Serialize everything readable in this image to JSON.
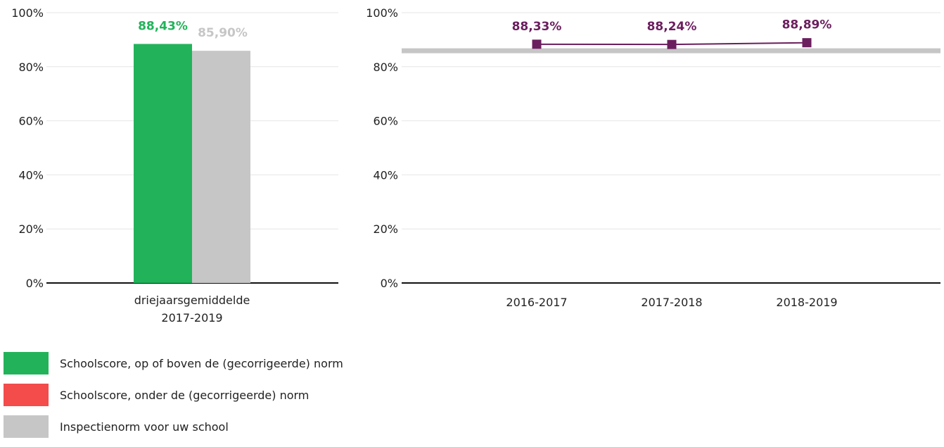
{
  "chart_data": [
    {
      "type": "bar",
      "categories": [
        "driejaarsgemiddelde 2017-2019"
      ],
      "category_lines": [
        "driejaarsgemiddelde",
        "2017-2019"
      ],
      "series": [
        {
          "name": "Schoolscore, op of boven de (gecorrigeerde) norm",
          "values": [
            88.43
          ],
          "labels": [
            "88,43%"
          ],
          "color": "#22b35a"
        },
        {
          "name": "Inspectienorm voor uw school",
          "values": [
            85.9
          ],
          "labels": [
            "85,90%"
          ],
          "color": "#c6c6c6"
        }
      ],
      "ylim": [
        0,
        100
      ],
      "yticks": [
        0,
        20,
        40,
        60,
        80,
        100
      ],
      "ytick_labels": [
        "0%",
        "20%",
        "40%",
        "60%",
        "80%",
        "100%"
      ],
      "grid": true
    },
    {
      "type": "line",
      "categories": [
        "2016-2017",
        "2017-2018",
        "2018-2019"
      ],
      "series": [
        {
          "values": [
            88.33,
            88.24,
            88.89
          ],
          "labels": [
            "88,33%",
            "88,24%",
            "88,89%"
          ],
          "color": "#6b1e5e"
        }
      ],
      "norm_line": {
        "value": 85.9,
        "color": "#c6c6c6"
      },
      "ylim": [
        0,
        100
      ],
      "yticks": [
        0,
        20,
        40,
        60,
        80,
        100
      ],
      "ytick_labels": [
        "0%",
        "20%",
        "40%",
        "60%",
        "80%",
        "100%"
      ],
      "grid": true
    }
  ],
  "legend": [
    {
      "label": "Schoolscore, op of boven de (gecorrigeerde) norm",
      "color": "#22b35a"
    },
    {
      "label": "Schoolscore, onder de (gecorrigeerde) norm",
      "color": "#f44b4b"
    },
    {
      "label": "Inspectienorm voor uw school",
      "color": "#c6c6c6"
    }
  ]
}
